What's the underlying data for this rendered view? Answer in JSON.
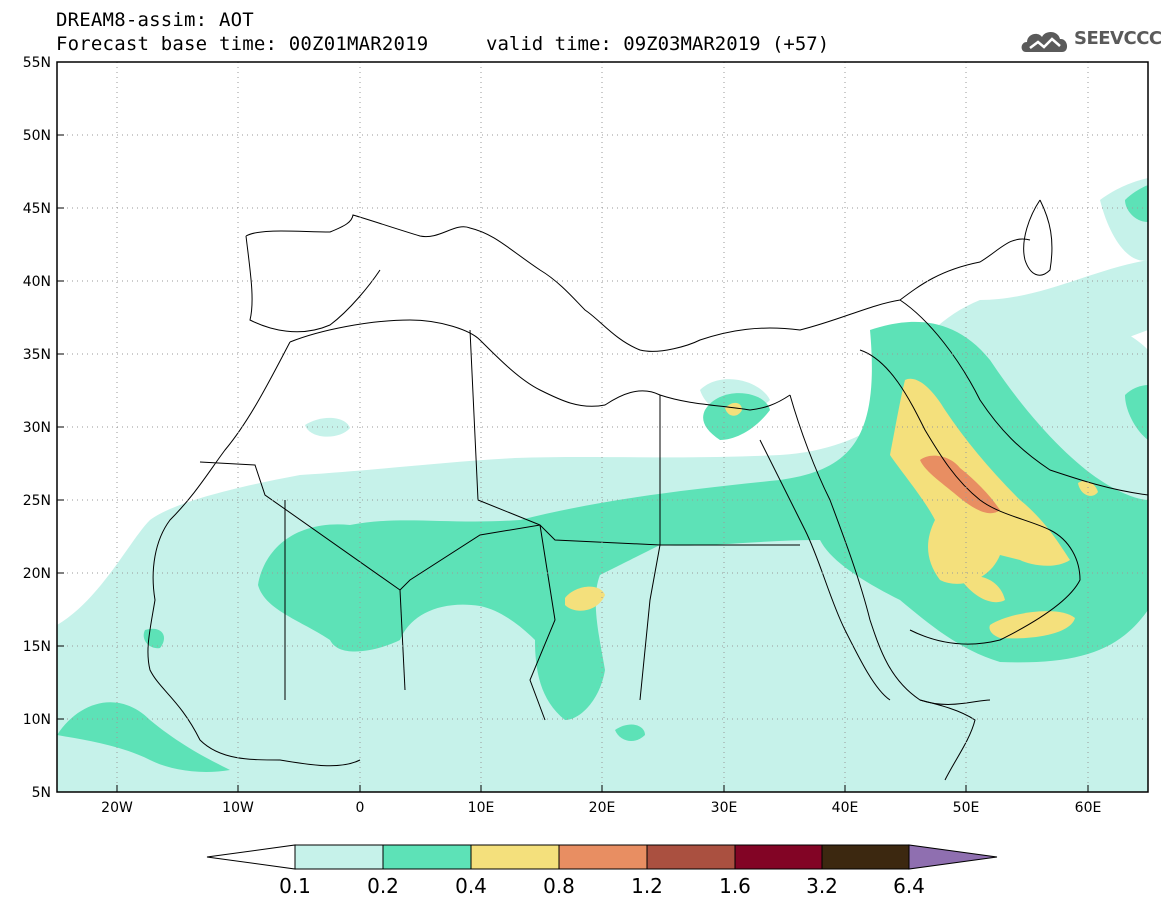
{
  "header": {
    "title": "DREAM8-assim: AOT",
    "base_time": "Forecast base time: 00Z01MAR2019",
    "valid_time": "valid time: 09Z03MAR2019 (+57)",
    "logo_text": "SEEVCCC"
  },
  "map": {
    "lat_labels": [
      "55N",
      "50N",
      "45N",
      "40N",
      "35N",
      "30N",
      "25N",
      "20N",
      "15N",
      "10N",
      "5N"
    ],
    "lon_labels": [
      "20W",
      "10W",
      "0",
      "10E",
      "20E",
      "30E",
      "40E",
      "50E",
      "60E"
    ],
    "lat_range": [
      5,
      55
    ],
    "lon_range": [
      -25,
      65
    ]
  },
  "colorbar": {
    "labels": [
      "0.1",
      "0.2",
      "0.4",
      "0.8",
      "1.2",
      "1.6",
      "3.2",
      "6.4"
    ],
    "colors": [
      "#c6f2ea",
      "#5de2b7",
      "#f4e07c",
      "#e88e62",
      "#aa5040",
      "#820425",
      "#3c2810",
      "#8f6fb0"
    ]
  }
}
